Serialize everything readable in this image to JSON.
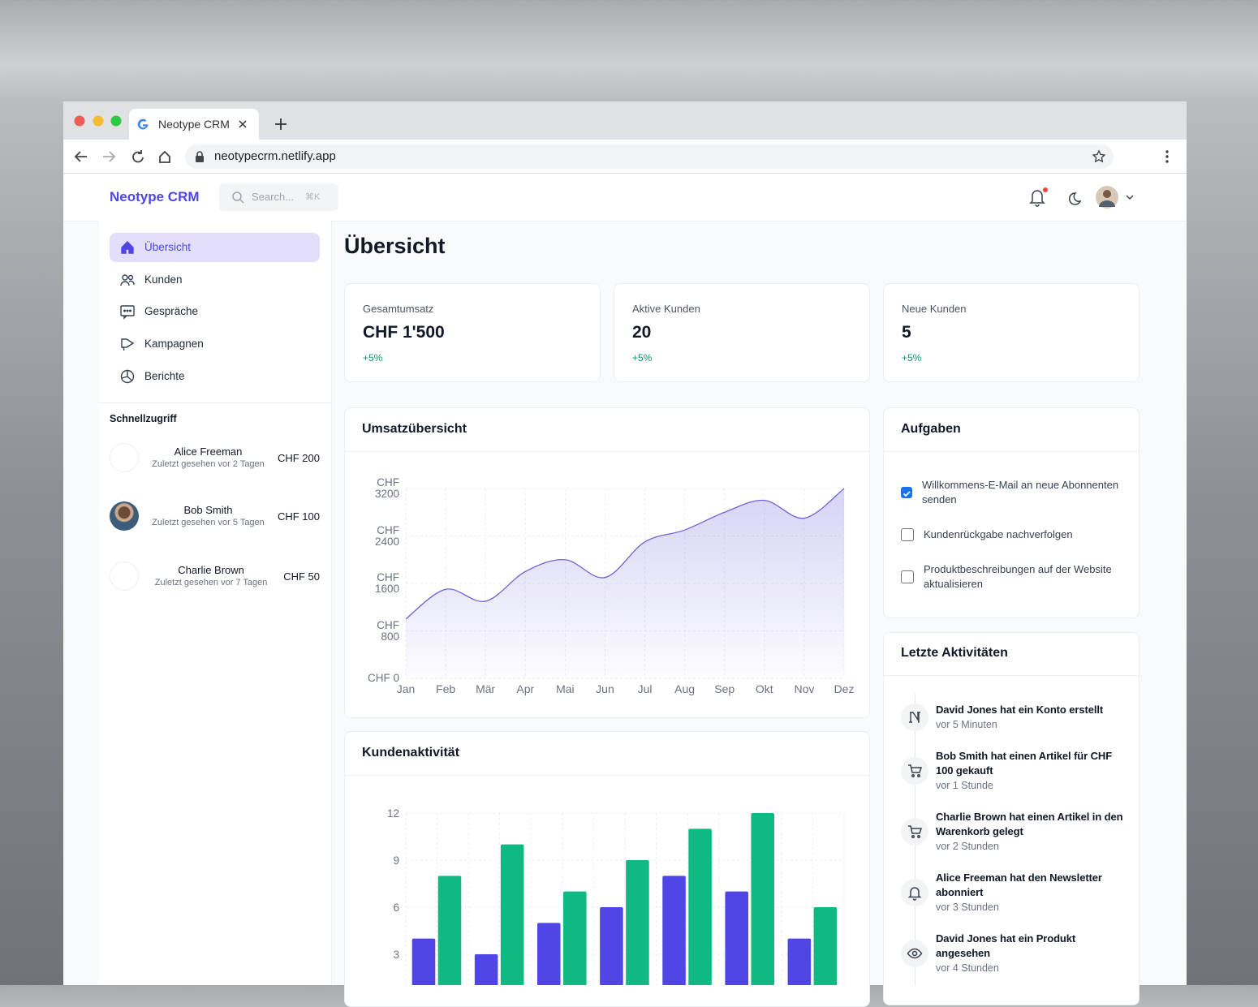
{
  "browser": {
    "tab_title": "Neotype CRM",
    "url": "neotypecrm.netlify.app"
  },
  "header": {
    "brand": "Neotype CRM",
    "search_placeholder": "Search...",
    "search_shortcut": "⌘K"
  },
  "navigation": [
    {
      "label": "Übersicht",
      "active": true
    },
    {
      "label": "Kunden"
    },
    {
      "label": "Gespräche"
    },
    {
      "label": "Kampagnen"
    },
    {
      "label": "Berichte"
    }
  ],
  "quick_access": {
    "title": "Schnellzugriff",
    "items": [
      {
        "name": "Alice Freeman",
        "seen": "Zuletzt gesehen vor 2 Tagen",
        "amount": "CHF 200"
      },
      {
        "name": "Bob Smith",
        "seen": "Zuletzt gesehen vor 5 Tagen",
        "amount": "CHF 100",
        "photo": true
      },
      {
        "name": "Charlie Brown",
        "seen": "Zuletzt gesehen vor 7 Tagen",
        "amount": "CHF 50"
      }
    ]
  },
  "page_title": "Übersicht",
  "stats": [
    {
      "label": "Gesamtumsatz",
      "value": "CHF 1'500",
      "change": "+5%"
    },
    {
      "label": "Aktive Kunden",
      "value": 20,
      "change": "+5%"
    },
    {
      "label": "Neue Kunden",
      "value": 5,
      "change": "+5%"
    }
  ],
  "chart_data": [
    {
      "type": "area",
      "title": "Umsatzübersicht",
      "categories": [
        "Jan",
        "Feb",
        "Mär",
        "Apr",
        "Mai",
        "Jun",
        "Jul",
        "Aug",
        "Sep",
        "Okt",
        "Nov",
        "Dez"
      ],
      "values": [
        1000,
        1500,
        1300,
        1800,
        2000,
        1700,
        2300,
        2500,
        2800,
        3000,
        2700,
        3200
      ],
      "color": "#6d63d9",
      "ylim": [
        0,
        3200
      ],
      "yticks": [
        {
          "value": 0,
          "label": "CHF 0"
        },
        {
          "value": 800,
          "label": "CHF 800"
        },
        {
          "value": 1600,
          "label": "CHF 1600"
        },
        {
          "value": 2400,
          "label": "CHF 2400"
        },
        {
          "value": 3200,
          "label": "CHF 3200"
        }
      ],
      "grid": true
    },
    {
      "type": "bar",
      "title": "Kundenaktivität",
      "series": [
        {
          "color": "#4f46e5",
          "values": [
            4,
            3,
            5,
            6,
            8,
            7,
            4
          ]
        },
        {
          "color": "#10b981",
          "values": [
            8,
            10,
            7,
            9,
            11,
            12,
            6
          ]
        }
      ],
      "ylim": [
        0,
        12
      ],
      "yticks": [
        3,
        6,
        9,
        12
      ],
      "grid": true
    }
  ],
  "tasks": {
    "title": "Aufgaben",
    "items": [
      {
        "label": "Willkommens-E-Mail an neue Abonnenten senden",
        "done": true
      },
      {
        "label": "Kundenrückgabe nachverfolgen",
        "done": false
      },
      {
        "label": "Produktbeschreibungen auf der Website aktualisieren",
        "done": false
      }
    ]
  },
  "activities": {
    "title": "Letzte Aktivitäten",
    "items": [
      {
        "text": "David Jones hat ein Konto erstellt",
        "time": "vor 5 Minuten"
      },
      {
        "text": "Bob Smith hat einen Artikel für CHF 100 gekauft",
        "time": "vor 1 Stunde"
      },
      {
        "text": "Charlie Brown hat einen Artikel in den Warenkorb gelegt",
        "time": "vor 2 Stunden"
      },
      {
        "text": "Alice Freeman hat den Newsletter abonniert",
        "time": "vor 3 Stunden"
      },
      {
        "text": "David Jones hat ein Produkt angesehen",
        "time": "vor 4 Stunden"
      }
    ]
  }
}
